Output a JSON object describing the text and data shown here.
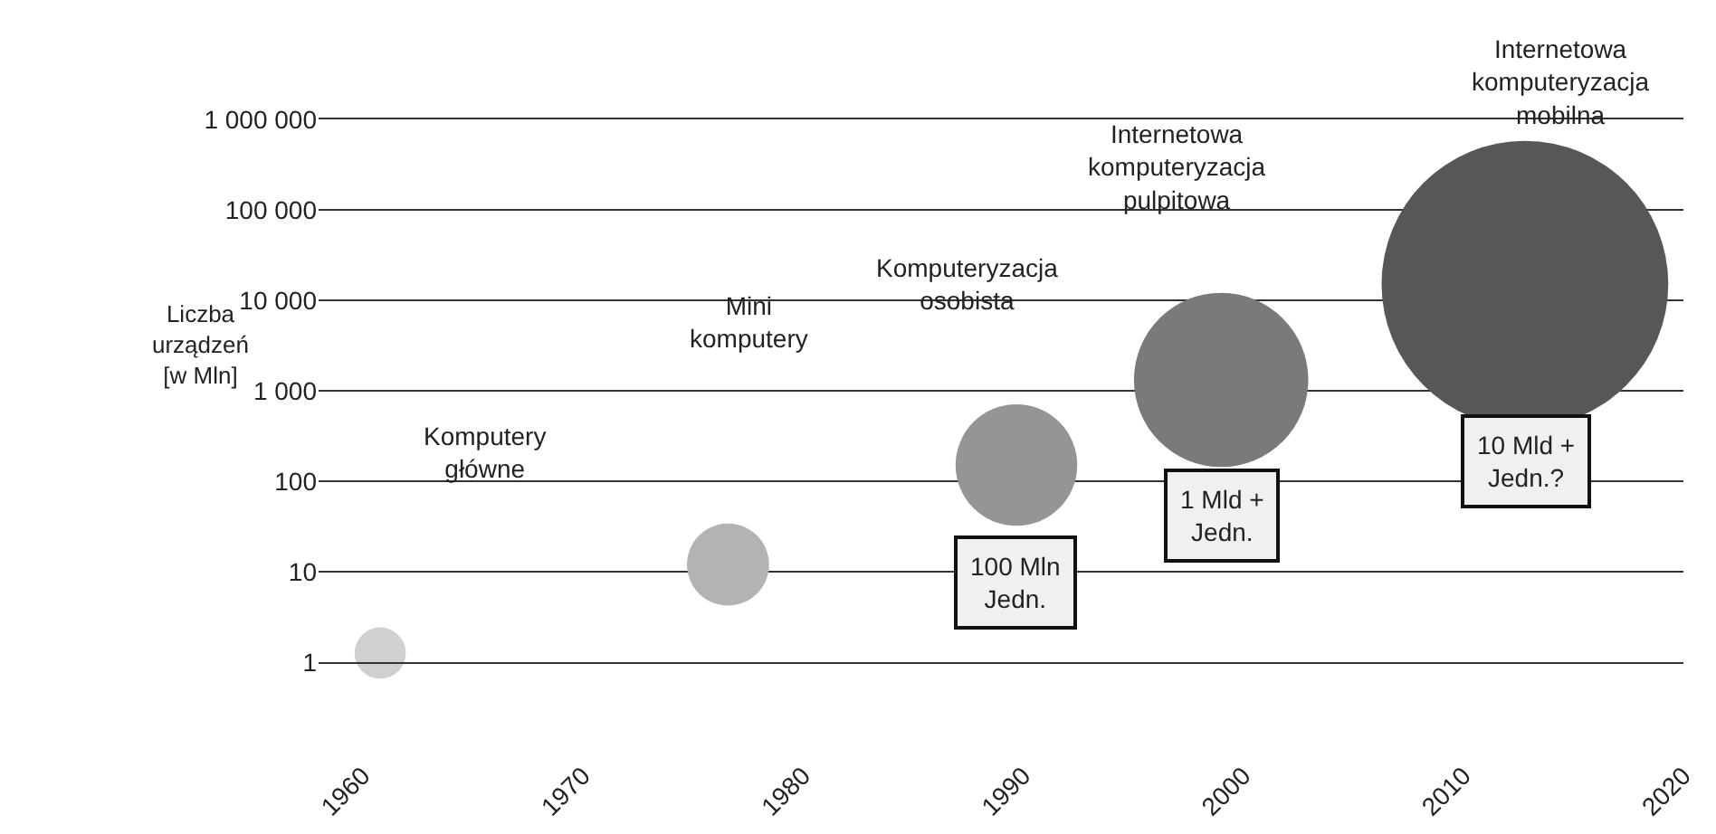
{
  "chart_data": {
    "type": "bubble",
    "ylabel": "Liczba\nurządzeń\n[w Mln]",
    "x": [
      1960.8,
      1976.6,
      1989.7,
      1999.0,
      2012.8
    ],
    "values": [
      1.26,
      12,
      151,
      1318,
      15100
    ],
    "sizes": [
      0.032,
      0.082,
      0.18,
      0.37,
      1
    ],
    "colors": [
      "#d0d0d0",
      "#b3b3b3",
      "#959595",
      "#7a7a7a",
      "#575757"
    ],
    "xlim": [
      1958,
      2020
    ],
    "xticks": [
      1960,
      1970,
      1980,
      1990,
      2000,
      2010,
      2020
    ],
    "ylim": [
      1,
      1000000
    ],
    "yticks": [
      {
        "value": 1,
        "label": "1"
      },
      {
        "value": 10,
        "label": "10"
      },
      {
        "value": 100,
        "label": "100"
      },
      {
        "value": 1000,
        "label": "1 000"
      },
      {
        "value": 10000,
        "label": "10 000"
      },
      {
        "value": 100000,
        "label": "100 000"
      },
      {
        "value": 1000000,
        "label": "1 000 000"
      }
    ],
    "log": "y",
    "grid": "y",
    "annotations": [
      "Komputery\ngłówne",
      "Mini\nkomputery",
      "Komputeryzacja\nosobista",
      "Internetowa\nkomputeryzacja\npulpitowa",
      "Internetowa\nkomputeryzacja\nmobilna",
      "100 Mln\nJedn.",
      "1 Mld +\nJedn.",
      "10 Mld +\nJedn.?"
    ]
  }
}
